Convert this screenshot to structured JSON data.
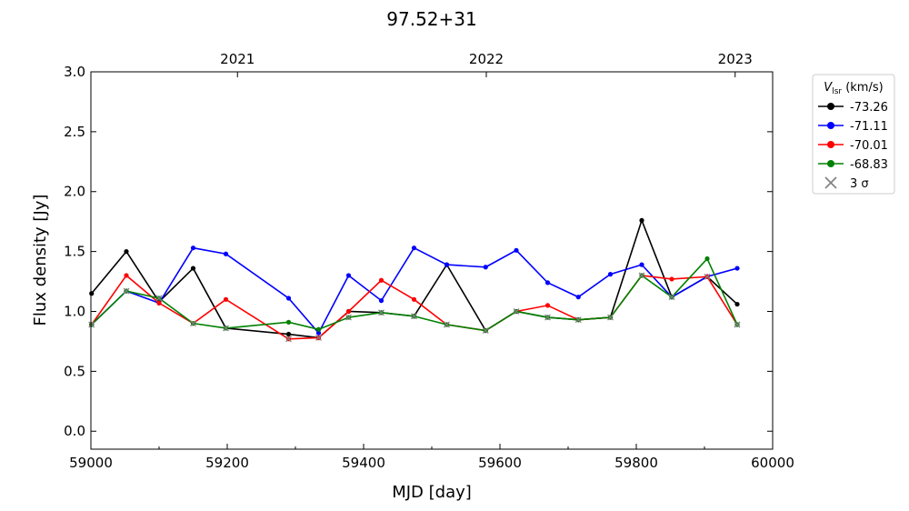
{
  "chart_data": {
    "type": "line",
    "title": "97.52+31",
    "xlabel": "MJD [day]",
    "ylabel": "Flux density [Jy]",
    "xlim": [
      59000,
      60000
    ],
    "ylim": [
      -0.15,
      3.0
    ],
    "x_ticks": [
      59000,
      59200,
      59400,
      59600,
      59800,
      60000
    ],
    "y_ticks": [
      0.0,
      0.5,
      1.0,
      1.5,
      2.0,
      2.5,
      3.0
    ],
    "top_axis": {
      "ticks": [
        {
          "label": "2021",
          "mjd": 59215
        },
        {
          "label": "2022",
          "mjd": 59580
        },
        {
          "label": "2023",
          "mjd": 59945
        }
      ]
    },
    "grid": false,
    "legend_position": "outside-right-top",
    "legend_title": "V_lsr (km/s)",
    "legend_sigma_label": "3 σ",
    "x": [
      59001,
      59052,
      59100,
      59150,
      59198,
      59290,
      59334,
      59378,
      59426,
      59474,
      59522,
      59579,
      59624,
      59670,
      59715,
      59762,
      59808,
      59852,
      59904,
      59948
    ],
    "series": [
      {
        "name": "-73.26",
        "color": "#000000",
        "values": [
          1.15,
          1.5,
          1.08,
          1.36,
          0.86,
          0.81,
          0.78,
          1.0,
          0.99,
          0.96,
          1.39,
          0.84,
          1.0,
          0.95,
          0.93,
          0.95,
          1.76,
          1.12,
          1.29,
          1.06
        ]
      },
      {
        "name": "-71.11",
        "color": "#0000ff",
        "values": [
          0.89,
          1.17,
          1.07,
          1.53,
          1.48,
          1.11,
          0.82,
          1.3,
          1.09,
          1.53,
          1.39,
          1.37,
          1.51,
          1.24,
          1.12,
          1.31,
          1.39,
          1.12,
          1.29,
          1.36
        ]
      },
      {
        "name": "-70.01",
        "color": "#ff0000",
        "values": [
          0.89,
          1.3,
          1.07,
          0.9,
          1.1,
          0.77,
          0.78,
          1.0,
          1.26,
          1.1,
          0.89,
          0.84,
          1.0,
          1.05,
          0.93,
          0.95,
          1.3,
          1.27,
          1.29,
          0.89
        ]
      },
      {
        "name": "-68.83",
        "color": "#008000",
        "values": [
          0.89,
          1.17,
          1.11,
          0.9,
          0.86,
          0.91,
          0.85,
          0.95,
          0.99,
          0.96,
          0.89,
          0.84,
          1.0,
          0.95,
          0.93,
          0.95,
          1.3,
          1.12,
          1.44,
          0.89
        ]
      }
    ],
    "sigma3": {
      "color": "#808080",
      "x": [
        59001,
        59052,
        59100,
        59150,
        59198,
        59290,
        59334,
        59378,
        59426,
        59474,
        59522,
        59579,
        59624,
        59670,
        59715,
        59762,
        59808,
        59852,
        59904,
        59948
      ],
      "values": [
        0.89,
        1.17,
        1.11,
        0.9,
        0.86,
        0.77,
        0.78,
        0.95,
        0.99,
        0.96,
        0.89,
        0.84,
        1.0,
        0.95,
        0.93,
        0.95,
        1.3,
        1.12,
        1.29,
        0.89
      ]
    }
  }
}
